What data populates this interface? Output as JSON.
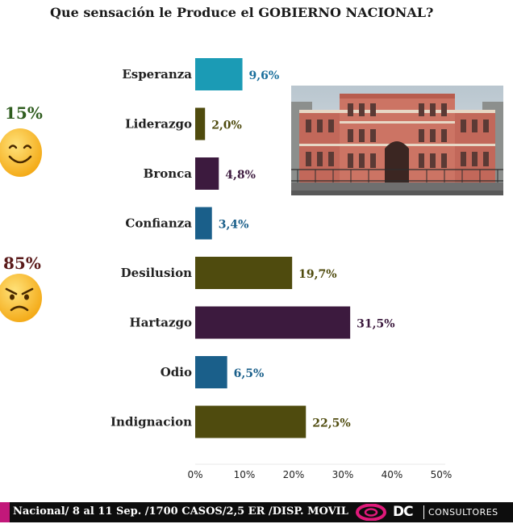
{
  "title": "Que sensación le Produce el GOBIERNO NACIONAL?",
  "summary": {
    "positive_pct": "15%",
    "negative_pct": "85%",
    "positive_icon": "smiling-face-icon",
    "negative_icon": "angry-face-icon"
  },
  "photo": {
    "icon": "government-building-photo"
  },
  "footer": {
    "text": "Nacional/ 8 al 11 Sep. /1700 CASOS/2,5 ER /DISP. MOVIL",
    "brand_short": "DC",
    "brand_name": "CONSULTORES",
    "accent_color": "#c2187a"
  },
  "chart_data": {
    "type": "bar",
    "orientation": "horizontal",
    "categories": [
      "Esperanza",
      "Liderazgo",
      "Bronca",
      "Confianza",
      "Desilusion",
      "Hartazgo",
      "Odio",
      "Indignacion"
    ],
    "values": [
      9.6,
      2.0,
      4.8,
      3.4,
      19.7,
      31.5,
      6.5,
      22.5
    ],
    "value_labels": [
      "9,6%",
      "2,0%",
      "4,8%",
      "3,4%",
      "19,7%",
      "31,5%",
      "6,5%",
      "22,5%"
    ],
    "colors": [
      "#1b9bb5",
      "#4f4b0e",
      "#3c1a3e",
      "#1a5f8a",
      "#4f4b0e",
      "#3c1a3e",
      "#1a5f8a",
      "#4f4b0e"
    ],
    "label_colors": [
      "#1a6f9c",
      "#4f4b0e",
      "#3c1a3e",
      "#1a5f8a",
      "#4f4b0e",
      "#3c1a3e",
      "#1a5f8a",
      "#4f4b0e"
    ],
    "xlim": [
      0,
      50
    ],
    "xticks": [
      "0%",
      "10%",
      "20%",
      "30%",
      "40%",
      "50%"
    ],
    "xtick_values": [
      0,
      10,
      20,
      30,
      40,
      50
    ],
    "grid": false,
    "legend": "none"
  }
}
